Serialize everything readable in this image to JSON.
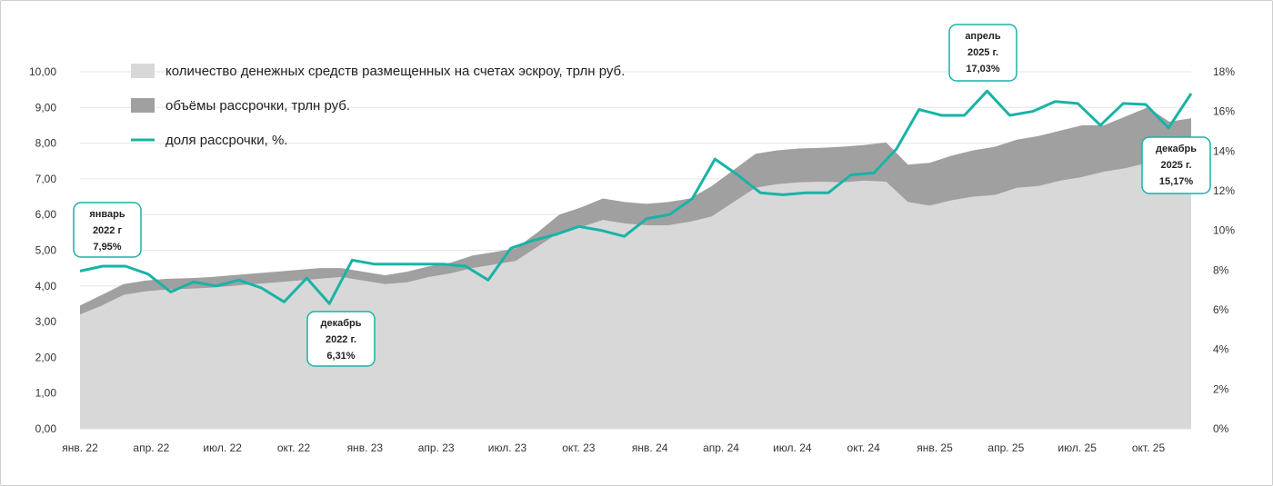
{
  "chart_data": {
    "type": "area",
    "x_ticks": [
      "янв. 22",
      "апр. 22",
      "июл. 22",
      "окт. 22",
      "янв. 23",
      "апр. 23",
      "июл. 23",
      "окт. 23",
      "янв. 24",
      "апр. 24",
      "июл. 24",
      "окт. 24",
      "янв. 25",
      "апр. 25",
      "июл. 25",
      "окт. 25"
    ],
    "y_left_ticks": [
      "0,00",
      "1,00",
      "2,00",
      "3,00",
      "4,00",
      "5,00",
      "6,00",
      "7,00",
      "8,00",
      "9,00",
      "10,00"
    ],
    "y_right_ticks": [
      "0%",
      "2%",
      "4%",
      "6%",
      "8%",
      "10%",
      "12%",
      "14%",
      "16%",
      "18%"
    ],
    "ylim_left": [
      0,
      10
    ],
    "ylim_right": [
      0,
      18
    ],
    "legend": [
      {
        "label": "количество денежных средств размещенных на счетах эскроу, трлн руб.",
        "color": "#d8d8d8",
        "kind": "area"
      },
      {
        "label": "объёмы рассрочки, трлн руб.",
        "color": "#a0a0a0",
        "kind": "area"
      },
      {
        "label": "доля рассрочки, %.",
        "color": "#19b3a6",
        "kind": "line"
      }
    ],
    "series": [
      {
        "name": "количество денежных средств размещенных на счетах эскроу, трлн руб.",
        "values": [
          3.2,
          3.45,
          3.75,
          3.85,
          3.9,
          3.92,
          3.95,
          4.0,
          4.05,
          4.1,
          4.15,
          4.2,
          4.25,
          4.15,
          4.05,
          4.1,
          4.25,
          4.35,
          4.5,
          4.6,
          4.7,
          5.1,
          5.5,
          5.65,
          5.85,
          5.75,
          5.7,
          5.7,
          5.8,
          5.95,
          6.35,
          6.75,
          6.85,
          6.9,
          6.92,
          6.9,
          6.95,
          6.92,
          6.35,
          6.25,
          6.4,
          6.5,
          6.55,
          6.75,
          6.8,
          6.95,
          7.05,
          7.2,
          7.3,
          7.45,
          7.6,
          7.8
        ]
      },
      {
        "name": "объёмы рассрочки, трлн руб.",
        "values": [
          0.25,
          0.3,
          0.3,
          0.3,
          0.3,
          0.3,
          0.3,
          0.3,
          0.3,
          0.3,
          0.3,
          0.3,
          0.25,
          0.25,
          0.25,
          0.3,
          0.3,
          0.3,
          0.35,
          0.35,
          0.35,
          0.4,
          0.5,
          0.55,
          0.6,
          0.6,
          0.6,
          0.65,
          0.65,
          0.85,
          0.9,
          0.95,
          0.95,
          0.95,
          0.95,
          1.0,
          1.0,
          1.1,
          1.05,
          1.2,
          1.25,
          1.3,
          1.35,
          1.35,
          1.4,
          1.4,
          1.45,
          1.3,
          1.45,
          1.55,
          1.0,
          0.9
        ]
      },
      {
        "name": "доля рассрочки, %.",
        "values": [
          7.95,
          8.2,
          8.2,
          7.8,
          6.9,
          7.4,
          7.2,
          7.5,
          7.1,
          6.4,
          7.6,
          6.31,
          8.5,
          8.3,
          8.3,
          8.3,
          8.3,
          8.2,
          7.5,
          9.1,
          9.5,
          9.8,
          10.2,
          10.0,
          9.7,
          10.6,
          10.8,
          11.6,
          13.6,
          12.8,
          11.9,
          11.8,
          11.9,
          11.9,
          12.8,
          12.9,
          14.1,
          16.1,
          15.8,
          15.8,
          17.03,
          15.8,
          16.0,
          16.5,
          16.4,
          15.3,
          16.4,
          16.35,
          15.17,
          16.9
        ]
      }
    ],
    "callouts": [
      {
        "lines": [
          "январь",
          "2022 г",
          "7,95%"
        ],
        "series": 2,
        "index": 0
      },
      {
        "lines": [
          "декабрь",
          "2022 г.",
          "6,31%"
        ],
        "series": 2,
        "index": 11
      },
      {
        "lines": [
          "апрель",
          "2025 г.",
          "17,03%"
        ],
        "series": 2,
        "index": 40
      },
      {
        "lines": [
          "декабрь",
          "2025 г.",
          "15,17%"
        ],
        "series": 2,
        "index": 48
      }
    ],
    "grid": "horizontal"
  }
}
